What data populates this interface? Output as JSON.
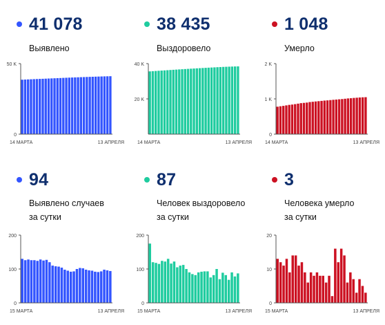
{
  "colors": {
    "blue": "#3355ff",
    "green": "#1fcc9f",
    "red": "#cc1122",
    "number": "#0f2f6e"
  },
  "panels": [
    {
      "id": "detected-total",
      "value": "41 078",
      "label1": "Выявлено",
      "label2": "",
      "color": "#3355ff",
      "icon": "dot-icon"
    },
    {
      "id": "recovered-total",
      "value": "38 435",
      "label1": "Выздоровело",
      "label2": "",
      "color": "#1fcc9f",
      "icon": "dot-icon"
    },
    {
      "id": "died-total",
      "value": "1 048",
      "label1": "Умерло",
      "label2": "",
      "color": "#cc1122",
      "icon": "dot-icon"
    },
    {
      "id": "detected-daily",
      "value": "94",
      "label1": "Выявлено случаев",
      "label2": "за сутки",
      "color": "#3355ff",
      "icon": "dot-icon"
    },
    {
      "id": "recovered-daily",
      "value": "87",
      "label1": "Человек выздоровело",
      "label2": "за сутки",
      "color": "#1fcc9f",
      "icon": "dot-icon"
    },
    {
      "id": "died-daily",
      "value": "3",
      "label1": "Человека умерло",
      "label2": "за сутки",
      "color": "#cc1122",
      "icon": "dot-icon"
    }
  ],
  "chart_data": [
    {
      "type": "bar",
      "title": "Выявлено",
      "x_start_label": "14 МАРТА",
      "x_end_label": "13 АПРЕЛЯ",
      "ylim": [
        0,
        50000
      ],
      "yticks": [
        0,
        50000
      ],
      "ytick_labels": [
        "0",
        "50 K"
      ],
      "color": "#3355ff",
      "values": [
        38600,
        38700,
        38800,
        38900,
        39000,
        39080,
        39160,
        39250,
        39340,
        39440,
        39530,
        39620,
        39700,
        39790,
        39890,
        39980,
        40070,
        40150,
        40230,
        40310,
        40390,
        40460,
        40540,
        40610,
        40690,
        40760,
        40830,
        40900,
        40960,
        41020,
        41078
      ]
    },
    {
      "type": "bar",
      "title": "Выздоровело",
      "x_start_label": "14 МАРТА",
      "x_end_label": "13 АПРЕЛЯ",
      "ylim": [
        0,
        40000
      ],
      "yticks": [
        20000,
        40000
      ],
      "ytick_labels": [
        "20 K",
        "40 K"
      ],
      "color": "#1fcc9f",
      "values": [
        35600,
        35720,
        35830,
        35950,
        36060,
        36160,
        36280,
        36390,
        36500,
        36610,
        36710,
        36820,
        36920,
        37020,
        37130,
        37230,
        37330,
        37420,
        37520,
        37610,
        37700,
        37790,
        37880,
        37970,
        38050,
        38130,
        38200,
        38270,
        38330,
        38390,
        38435
      ]
    },
    {
      "type": "bar",
      "title": "Умерло",
      "x_start_label": "14 МАРТА",
      "x_end_label": "13 АПРЕЛЯ",
      "ylim": [
        0,
        2000
      ],
      "yticks": [
        0,
        1000,
        2000
      ],
      "ytick_labels": [
        "0",
        "1 K",
        "2 K"
      ],
      "color": "#cc1122",
      "values": [
        778,
        791,
        802,
        816,
        830,
        839,
        851,
        865,
        879,
        887,
        895,
        910,
        918,
        927,
        935,
        943,
        952,
        958,
        966,
        974,
        981,
        988,
        995,
        1004,
        1013,
        1019,
        1027,
        1033,
        1040,
        1045,
        1048
      ]
    },
    {
      "type": "bar",
      "title": "Выявлено случаев за сутки",
      "x_start_label": "15 МАРТА",
      "x_end_label": "13 АПРЕЛЯ",
      "ylim": [
        0,
        200
      ],
      "yticks": [
        0,
        100,
        200
      ],
      "ytick_labels": [
        "0",
        "100",
        "200"
      ],
      "color": "#3355ff",
      "values": [
        130,
        126,
        128,
        126,
        126,
        124,
        128,
        125,
        127,
        120,
        110,
        108,
        107,
        104,
        98,
        95,
        92,
        93,
        100,
        103,
        102,
        98,
        96,
        95,
        92,
        91,
        93,
        98,
        96,
        94
      ]
    },
    {
      "type": "bar",
      "title": "Человек выздоровело за сутки",
      "x_start_label": "15 МАРТА",
      "x_end_label": "13 АПРЕЛЯ",
      "ylim": [
        0,
        200
      ],
      "yticks": [
        0,
        100,
        200
      ],
      "ytick_labels": [
        "0",
        "100",
        "200"
      ],
      "color": "#1fcc9f",
      "values": [
        175,
        120,
        118,
        115,
        124,
        122,
        130,
        116,
        122,
        105,
        110,
        112,
        100,
        90,
        85,
        82,
        90,
        92,
        93,
        93,
        75,
        82,
        100,
        70,
        89,
        82,
        68,
        90,
        78,
        87
      ]
    },
    {
      "type": "bar",
      "title": "Человека умерло за сутки",
      "x_start_label": "15 МАРТА",
      "x_end_label": "13 АПРЕЛЯ",
      "ylim": [
        0,
        20
      ],
      "yticks": [
        0,
        10,
        20
      ],
      "ytick_labels": [
        "0",
        "10",
        "20"
      ],
      "color": "#cc1122",
      "values": [
        13,
        12,
        11,
        13,
        9,
        14,
        14,
        11,
        12,
        9,
        6,
        9,
        8,
        9,
        8,
        8,
        6,
        8,
        2,
        16,
        12,
        16,
        14,
        6,
        9,
        7,
        3,
        7,
        5,
        3
      ]
    }
  ]
}
